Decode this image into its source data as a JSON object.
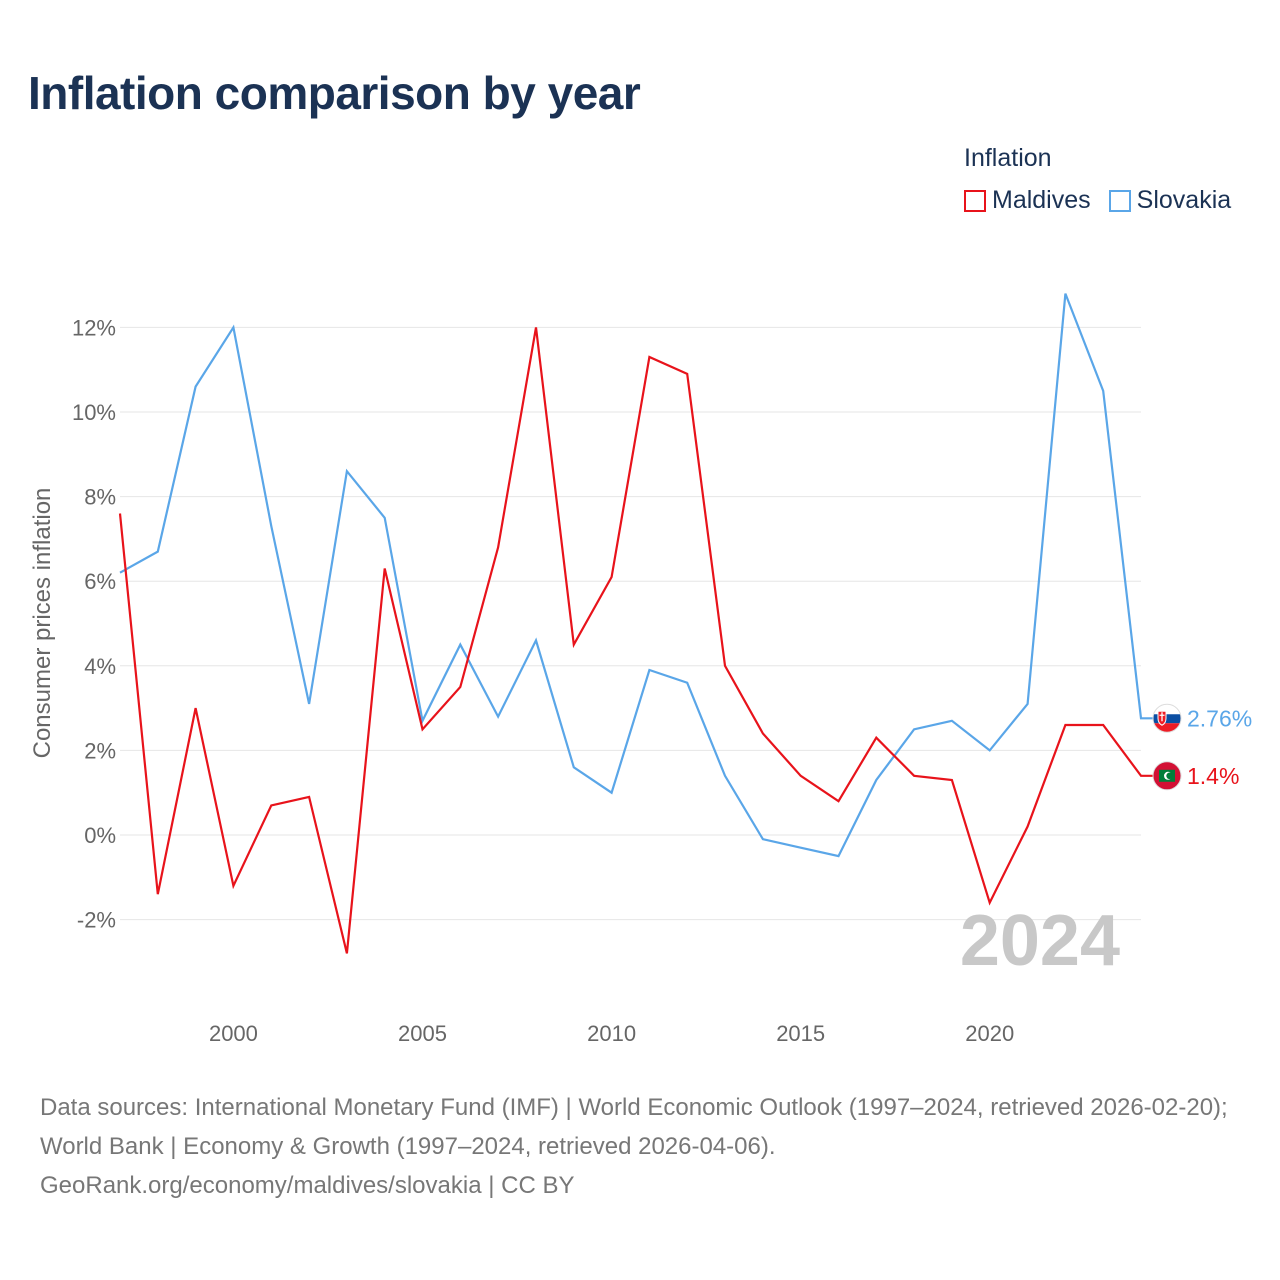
{
  "title": "Inflation comparison by year",
  "legend": {
    "title": "Inflation",
    "items": [
      {
        "label": "Maldives",
        "color": "#e8131b"
      },
      {
        "label": "Slovakia",
        "color": "#5aa6e8"
      }
    ]
  },
  "chart_data": {
    "type": "line",
    "ylabel": "Consumer prices inflation",
    "ylim": [
      -3.5,
      13.5
    ],
    "xlim": [
      1997,
      2024
    ],
    "yticks": [
      {
        "value": -2,
        "label": "-2%"
      },
      {
        "value": 0,
        "label": "0%"
      },
      {
        "value": 2,
        "label": "2%"
      },
      {
        "value": 4,
        "label": "4%"
      },
      {
        "value": 6,
        "label": "6%"
      },
      {
        "value": 8,
        "label": "8%"
      },
      {
        "value": 10,
        "label": "10%"
      },
      {
        "value": 12,
        "label": "12%"
      }
    ],
    "xticks": [
      {
        "value": 2000,
        "label": "2000"
      },
      {
        "value": 2005,
        "label": "2005"
      },
      {
        "value": 2010,
        "label": "2010"
      },
      {
        "value": 2015,
        "label": "2015"
      },
      {
        "value": 2020,
        "label": "2020"
      }
    ],
    "year_display": "2024",
    "x": [
      1997,
      1998,
      1999,
      2000,
      2001,
      2002,
      2003,
      2004,
      2005,
      2006,
      2007,
      2008,
      2009,
      2010,
      2011,
      2012,
      2013,
      2014,
      2015,
      2016,
      2017,
      2018,
      2019,
      2020,
      2021,
      2022,
      2023,
      2024
    ],
    "series": [
      {
        "name": "Maldives",
        "color": "#e8131b",
        "end_label": "1.4%",
        "flag": "maldives-flag-icon",
        "values": [
          7.6,
          -1.4,
          3.0,
          -1.2,
          0.7,
          0.9,
          -2.8,
          6.3,
          2.5,
          3.5,
          6.8,
          12.0,
          4.5,
          6.1,
          11.3,
          10.9,
          4.0,
          2.4,
          1.4,
          0.8,
          2.3,
          1.4,
          1.3,
          -1.6,
          0.2,
          2.6,
          2.6,
          1.4
        ]
      },
      {
        "name": "Slovakia",
        "color": "#5aa6e8",
        "end_label": "2.76%",
        "flag": "slovakia-flag-icon",
        "values": [
          6.2,
          6.7,
          10.6,
          12.0,
          7.3,
          3.1,
          8.6,
          7.5,
          2.7,
          4.5,
          2.8,
          4.6,
          1.6,
          1.0,
          3.9,
          3.6,
          1.4,
          -0.1,
          -0.3,
          -0.5,
          1.3,
          2.5,
          2.7,
          2.0,
          3.1,
          12.8,
          10.5,
          2.76
        ]
      }
    ]
  },
  "footer": {
    "sources": "Data sources: International Monetary Fund (IMF) | World Economic Outlook (1997–2024, retrieved 2026-02-20); World Bank | Economy & Growth (1997–2024, retrieved 2026-04-06).",
    "credit": "GeoRank.org/economy/maldives/slovakia | CC BY"
  }
}
